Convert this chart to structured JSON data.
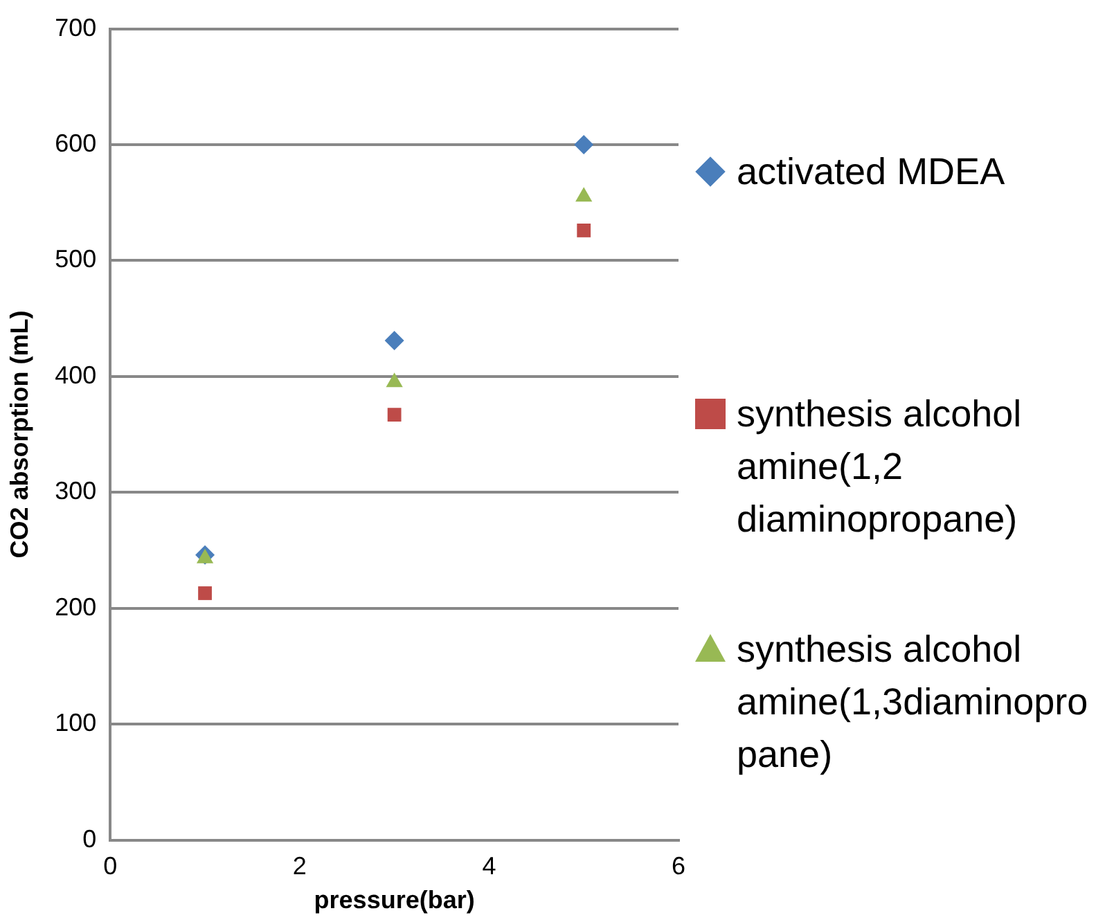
{
  "chart_data": {
    "type": "scatter",
    "xlabel": "pressure(bar)",
    "ylabel": "CO2 absorption (mL)",
    "xlim": [
      0,
      6
    ],
    "xticks": [
      0,
      2,
      4,
      6
    ],
    "ylim": [
      0,
      700
    ],
    "yticks": [
      0,
      100,
      200,
      300,
      400,
      500,
      600,
      700
    ],
    "grid": "y",
    "legend": "right",
    "series": [
      {
        "name": "activated MDEA",
        "color": "#4a7ebb",
        "marker": "diamond",
        "x": [
          1,
          3,
          5
        ],
        "values": [
          246,
          431,
          600
        ]
      },
      {
        "name": "synthesis alcohol amine(1,2 diaminopropane)",
        "color": "#be4b48",
        "marker": "square",
        "x": [
          1,
          3,
          5
        ],
        "values": [
          213,
          367,
          526
        ]
      },
      {
        "name": "synthesis alcohol amine(1,3diaminopropane)",
        "color": "#98b954",
        "marker": "triangle",
        "x": [
          1,
          3,
          5
        ],
        "values": [
          243,
          395,
          555
        ]
      }
    ]
  }
}
